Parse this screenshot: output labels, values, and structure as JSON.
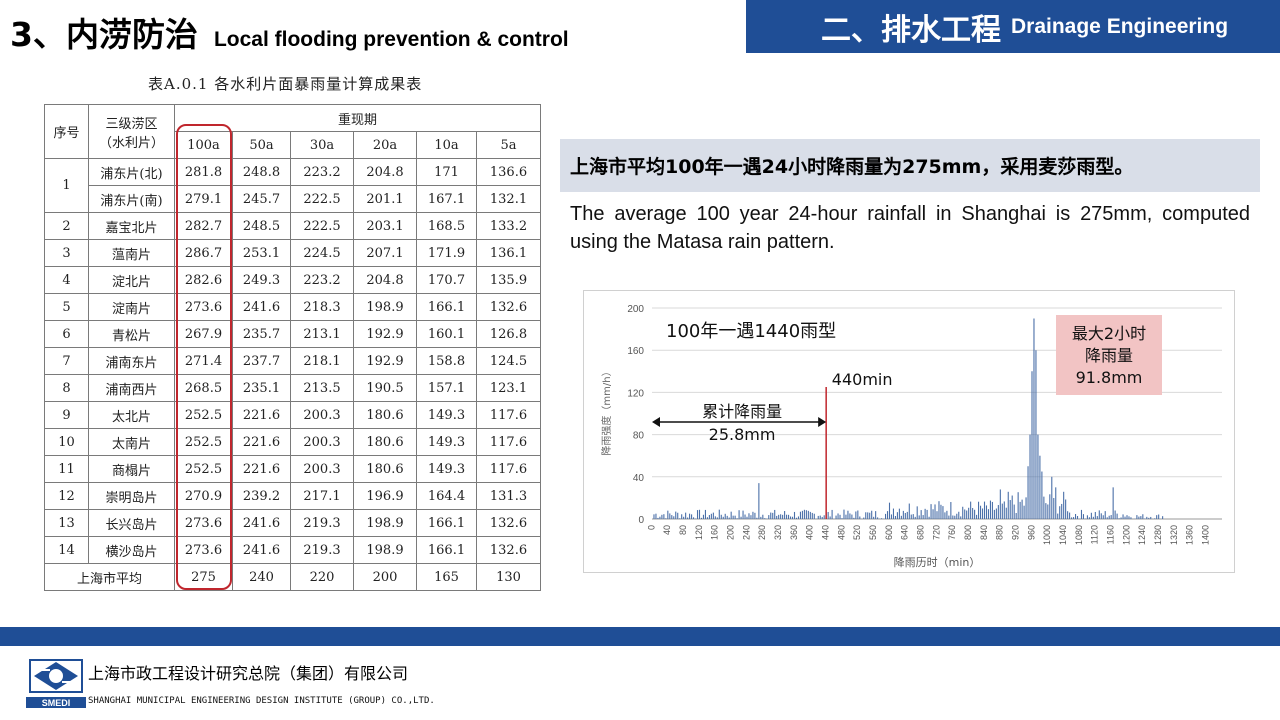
{
  "header": {
    "section_cn": "3、内涝防治",
    "section_en": "Local flooding prevention & control",
    "chapter_cn": "二、排水工程",
    "chapter_en": "Drainage Engineering"
  },
  "table": {
    "caption": "表A.0.1   各水利片面暴雨量计算成果表",
    "col_no": "序号",
    "col_zone_line1": "三级涝区",
    "col_zone_line2": "（水利片）",
    "col_group": "重现期",
    "periods": [
      "100a",
      "50a",
      "30a",
      "20a",
      "10a",
      "5a"
    ],
    "rows": [
      {
        "no": "1",
        "zone": "浦东片(北)",
        "values": [
          "281.8",
          "248.8",
          "223.2",
          "204.8",
          "171",
          "136.6"
        ]
      },
      {
        "no": "",
        "zone": "浦东片(南)",
        "values": [
          "279.1",
          "245.7",
          "222.5",
          "201.1",
          "167.1",
          "132.1"
        ]
      },
      {
        "no": "2",
        "zone": "嘉宝北片",
        "values": [
          "282.7",
          "248.5",
          "222.5",
          "203.1",
          "168.5",
          "133.2"
        ]
      },
      {
        "no": "3",
        "zone": "蕰南片",
        "values": [
          "286.7",
          "253.1",
          "224.5",
          "207.1",
          "171.9",
          "136.1"
        ]
      },
      {
        "no": "4",
        "zone": "淀北片",
        "values": [
          "282.6",
          "249.3",
          "223.2",
          "204.8",
          "170.7",
          "135.9"
        ]
      },
      {
        "no": "5",
        "zone": "淀南片",
        "values": [
          "273.6",
          "241.6",
          "218.3",
          "198.9",
          "166.1",
          "132.6"
        ]
      },
      {
        "no": "6",
        "zone": "青松片",
        "values": [
          "267.9",
          "235.7",
          "213.1",
          "192.9",
          "160.1",
          "126.8"
        ]
      },
      {
        "no": "7",
        "zone": "浦南东片",
        "values": [
          "271.4",
          "237.7",
          "218.1",
          "192.9",
          "158.8",
          "124.5"
        ]
      },
      {
        "no": "8",
        "zone": "浦南西片",
        "values": [
          "268.5",
          "235.1",
          "213.5",
          "190.5",
          "157.1",
          "123.1"
        ]
      },
      {
        "no": "9",
        "zone": "太北片",
        "values": [
          "252.5",
          "221.6",
          "200.3",
          "180.6",
          "149.3",
          "117.6"
        ]
      },
      {
        "no": "10",
        "zone": "太南片",
        "values": [
          "252.5",
          "221.6",
          "200.3",
          "180.6",
          "149.3",
          "117.6"
        ]
      },
      {
        "no": "11",
        "zone": "商榻片",
        "values": [
          "252.5",
          "221.6",
          "200.3",
          "180.6",
          "149.3",
          "117.6"
        ]
      },
      {
        "no": "12",
        "zone": "崇明岛片",
        "values": [
          "270.9",
          "239.2",
          "217.1",
          "196.9",
          "164.4",
          "131.3"
        ]
      },
      {
        "no": "13",
        "zone": "长兴岛片",
        "values": [
          "273.6",
          "241.6",
          "219.3",
          "198.9",
          "166.1",
          "132.6"
        ]
      },
      {
        "no": "14",
        "zone": "横沙岛片",
        "values": [
          "273.6",
          "241.6",
          "219.3",
          "198.9",
          "166.1",
          "132.6"
        ]
      }
    ],
    "avg_label": "上海市平均",
    "avg_values": [
      "275",
      "240",
      "220",
      "200",
      "165",
      "130"
    ]
  },
  "headline": "上海市平均100年一遇24小时降雨量为275mm，采用麦莎雨型。",
  "description": "The average 100 year 24-hour rainfall in Shanghai is 275mm, computed using the Matasa rain pattern.",
  "chart_data": {
    "type": "bar",
    "title": "100年一遇1440雨型",
    "xlabel": "降雨历时（min）",
    "ylabel": "降雨强度（mm/h）",
    "ylim": [
      0,
      200
    ],
    "yticks": [
      "0",
      "40",
      "80",
      "120",
      "160",
      "200"
    ],
    "xlim": [
      0,
      1440
    ],
    "xticks": [
      "0",
      "40",
      "80",
      "120",
      "160",
      "200",
      "240",
      "280",
      "320",
      "360",
      "400",
      "440",
      "480",
      "520",
      "560",
      "600",
      "640",
      "680",
      "720",
      "760",
      "800",
      "840",
      "880",
      "920",
      "960",
      "1000",
      "1040",
      "1080",
      "1120",
      "1160",
      "1200",
      "1240",
      "1280",
      "1320",
      "1360",
      "1400"
    ],
    "grid": "horizontal",
    "bar_color": "#4a6fa8",
    "annotations": {
      "marker_label": "440min",
      "marker_x": 440,
      "marker_color": "#c0262d",
      "cumulative_line1": "累计降雨量",
      "cumulative_line2": "25.8mm",
      "cumulative_range": [
        0,
        440
      ],
      "max_line1": "最大2小时",
      "max_line2": "降雨量",
      "max_line3": "91.8mm",
      "max_box_color": "#f2c4c4"
    },
    "peaks": [
      {
        "x": 270,
        "y": 34
      },
      {
        "x": 880,
        "y": 28
      },
      {
        "x": 950,
        "y": 50
      },
      {
        "x": 955,
        "y": 80
      },
      {
        "x": 960,
        "y": 140
      },
      {
        "x": 965,
        "y": 190
      },
      {
        "x": 970,
        "y": 160
      },
      {
        "x": 975,
        "y": 80
      },
      {
        "x": 980,
        "y": 60
      },
      {
        "x": 985,
        "y": 45
      },
      {
        "x": 1010,
        "y": 40
      },
      {
        "x": 1020,
        "y": 30
      },
      {
        "x": 1165,
        "y": 30
      }
    ]
  },
  "footer": {
    "company_cn": "上海市政工程设计研究总院（集团）有限公司",
    "company_en": "SHANGHAI MUNICIPAL ENGINEERING DESIGN INSTITUTE (GROUP) CO.,LTD.",
    "logo_text": "SMEDI"
  }
}
